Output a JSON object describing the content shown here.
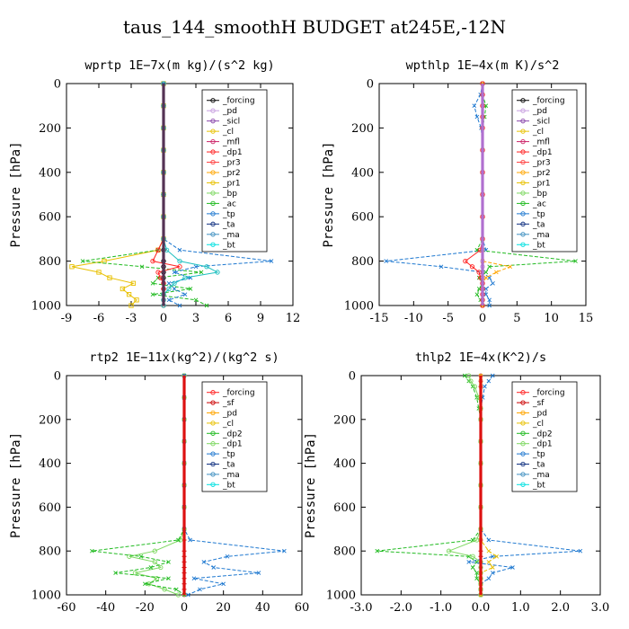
{
  "suptitle": "taus_144_smoothH  BUDGET at245E,-12N",
  "chart_data": [
    {
      "type": "line",
      "title": "wprtp   1E−7x(m kg)/(s^2 kg)",
      "ylabel": "Pressure [hPa]",
      "xlim": [
        -9,
        12
      ],
      "xticks": [
        "-9",
        "-6",
        "-3",
        "0",
        "3",
        "6",
        "9",
        "12"
      ],
      "ylim": [
        1000,
        0
      ],
      "yticks": [
        "0",
        "200",
        "400",
        "600",
        "800",
        "1000"
      ],
      "pressure": [
        0,
        100,
        200,
        300,
        400,
        500,
        600,
        700,
        750,
        800,
        825,
        850,
        875,
        900,
        925,
        950,
        975,
        1000
      ],
      "legend": [
        "_forcing",
        "_pd",
        "_sicl",
        "_cl",
        "_mfl",
        "_dp1",
        "_pr3",
        "_pr2",
        "_pr1",
        "_bp",
        "_ac",
        "_tp",
        "_ta",
        "_ma",
        "_bt"
      ],
      "series": [
        {
          "name": "_forcing",
          "color": "#000000",
          "marker": "o",
          "values": [
            0,
            0,
            0,
            0,
            0,
            0,
            0,
            0,
            0,
            0,
            0,
            0,
            0,
            0,
            0,
            0,
            0,
            0
          ]
        },
        {
          "name": "_pr1",
          "color": "#e8c000",
          "marker": "s",
          "values": [
            0,
            0,
            0,
            0,
            0,
            0,
            0,
            0,
            -0.5,
            -5.5,
            -8.5,
            -6,
            -5,
            -2.8,
            -3.8,
            -3.2,
            -2.5,
            -3
          ]
        },
        {
          "name": "_ac",
          "color": "#22bb22",
          "marker": "x",
          "values": [
            0,
            0,
            0,
            0,
            0,
            0,
            0,
            0,
            -0.5,
            -7.5,
            -2,
            3.5,
            -0.5,
            -1,
            2.5,
            -1,
            3,
            4
          ]
        },
        {
          "name": "_tp",
          "color": "#1e78d0",
          "marker": "x",
          "values": [
            0,
            0,
            0,
            0,
            0,
            0,
            0,
            0,
            1.5,
            10,
            3,
            1,
            2.5,
            0.5,
            1,
            2,
            0.5,
            1.5
          ]
        },
        {
          "name": "_dp1",
          "color": "#ff2020",
          "marker": "o",
          "values": [
            0,
            0,
            0,
            0,
            0,
            0,
            0,
            0,
            -0.5,
            -1,
            1.5,
            -0.5,
            -0.3,
            0,
            0,
            0,
            0,
            0
          ]
        },
        {
          "name": "_bp",
          "color": "#20c0c0",
          "marker": "o",
          "values": [
            0,
            0,
            0,
            0,
            0,
            0,
            0,
            0,
            0.3,
            1.5,
            4,
            5,
            2,
            1,
            0.5,
            0,
            0,
            0
          ]
        }
      ]
    },
    {
      "type": "line",
      "title": "wpthlp   1E−4x(m K)/s^2",
      "ylabel": "Pressure [hPa]",
      "xlim": [
        -15,
        15
      ],
      "xticks": [
        "-15",
        "-10",
        "-5",
        "0",
        "5",
        "10",
        "15"
      ],
      "ylim": [
        1000,
        0
      ],
      "yticks": [
        "0",
        "200",
        "400",
        "600",
        "800",
        "1000"
      ],
      "pressure": [
        0,
        50,
        100,
        150,
        200,
        300,
        400,
        500,
        600,
        700,
        750,
        800,
        825,
        850,
        875,
        900,
        925,
        950,
        975,
        1000
      ],
      "legend": [
        "_forcing",
        "_pd",
        "_sicl",
        "_cl",
        "_mfl",
        "_dp1",
        "_pr3",
        "_pr2",
        "_pr1",
        "_bp",
        "_ac",
        "_tp",
        "_ta",
        "_ma",
        "_bt"
      ],
      "series": [
        {
          "name": "_forcing",
          "color": "#c8a0e0",
          "marker": "o",
          "values": [
            0,
            0,
            0,
            0,
            0,
            0,
            0,
            0,
            0,
            0,
            0,
            0,
            0,
            0,
            0,
            0,
            0,
            0,
            0,
            0
          ]
        },
        {
          "name": "_tp",
          "color": "#1e78d0",
          "marker": "x",
          "values": [
            0,
            -0.3,
            -1.2,
            -0.8,
            -0.2,
            0,
            0,
            0,
            0,
            0,
            0.5,
            -14,
            -6,
            0,
            1,
            1.5,
            0.5,
            0.5,
            1,
            1
          ]
        },
        {
          "name": "_ac",
          "color": "#22bb22",
          "marker": "x",
          "values": [
            0,
            0,
            0.5,
            0.3,
            0,
            0,
            0,
            0,
            0,
            0,
            -0.8,
            13.5,
            1,
            0.5,
            -0.5,
            0,
            -0.5,
            -0.8,
            -0.3,
            0
          ]
        },
        {
          "name": "_pr2",
          "color": "#ffa500",
          "marker": "x",
          "values": [
            0,
            0,
            0,
            0,
            0,
            0,
            0,
            0,
            0,
            0,
            0,
            0,
            4,
            2,
            0.5,
            0,
            0,
            0,
            0,
            0
          ]
        },
        {
          "name": "_dp1",
          "color": "#ff2020",
          "marker": "o",
          "values": [
            0,
            0,
            0,
            0,
            0,
            0,
            0,
            0,
            0,
            0,
            -0.3,
            -2.5,
            -1.5,
            -0.5,
            -0.3,
            0,
            0,
            0,
            0,
            0
          ]
        }
      ]
    },
    {
      "type": "line",
      "title": "rtp2   1E−11x(kg^2)/(kg^2 s)",
      "ylabel": "Pressure [hPa]",
      "xlim": [
        -60,
        60
      ],
      "xticks": [
        "-60",
        "-40",
        "-20",
        "0",
        "20",
        "40",
        "60"
      ],
      "ylim": [
        1000,
        0
      ],
      "yticks": [
        "0",
        "200",
        "400",
        "600",
        "800",
        "1000"
      ],
      "pressure": [
        0,
        100,
        200,
        300,
        400,
        500,
        600,
        700,
        750,
        800,
        825,
        850,
        875,
        900,
        925,
        950,
        975,
        1000
      ],
      "legend": [
        "_forcing",
        "_sf",
        "_pd",
        "_cl",
        "_dp2",
        "_dp1",
        "_tp",
        "_ta",
        "_ma",
        "_bt"
      ],
      "series": [
        {
          "name": "_sf",
          "color": "#cc0000",
          "marker": "+",
          "values": [
            0,
            0,
            0,
            0,
            0,
            0,
            0,
            0,
            0,
            0,
            0,
            0,
            0,
            0,
            0,
            0,
            0,
            0
          ]
        },
        {
          "name": "_dp1",
          "color": "#7dd860",
          "marker": "o",
          "values": [
            0,
            0,
            0,
            0,
            0,
            0,
            0,
            0,
            -2,
            -15,
            -28,
            -15,
            -12,
            -25,
            -14,
            -18,
            -10,
            -3
          ]
        },
        {
          "name": "_dp2",
          "color": "#22bb22",
          "marker": "x",
          "values": [
            0,
            0,
            0,
            0,
            0,
            0,
            0,
            0,
            -3,
            -47,
            -22,
            -8,
            -17,
            -35,
            -8,
            -20,
            -4,
            0
          ]
        },
        {
          "name": "_tp",
          "color": "#1e78d0",
          "marker": "x",
          "values": [
            0,
            0,
            0,
            0,
            0,
            0,
            0,
            0,
            3,
            51,
            22,
            10,
            15,
            38,
            5,
            20,
            8,
            2
          ]
        }
      ]
    },
    {
      "type": "line",
      "title": "thlp2   1E−4x(K^2)/s",
      "ylabel": "Pressure [hPa]",
      "xlim": [
        -3,
        3
      ],
      "xticks": [
        "-3.0",
        "-2.0",
        "-1.0",
        "0.0",
        "1.0",
        "2.0",
        "3.0"
      ],
      "ylim": [
        1000,
        0
      ],
      "yticks": [
        "0",
        "200",
        "400",
        "600",
        "800",
        "1000"
      ],
      "pressure": [
        0,
        25,
        50,
        100,
        150,
        200,
        300,
        400,
        500,
        600,
        700,
        750,
        800,
        825,
        850,
        875,
        900,
        925,
        950,
        975,
        1000
      ],
      "legend": [
        "_forcing",
        "_sf",
        "_pd",
        "_cl",
        "_dp2",
        "_dp1",
        "_tp",
        "_ta",
        "_ma",
        "_bt"
      ],
      "series": [
        {
          "name": "_sf",
          "color": "#cc0000",
          "marker": "+",
          "values": [
            0,
            0,
            0,
            0,
            0,
            0,
            0,
            0,
            0,
            0,
            0,
            0,
            0,
            0,
            0,
            0,
            0,
            0,
            0,
            0,
            0
          ]
        },
        {
          "name": "_dp2",
          "color": "#22bb22",
          "marker": "x",
          "values": [
            -0.4,
            -0.3,
            -0.2,
            -0.1,
            -0.05,
            0,
            0,
            0,
            0,
            0,
            0,
            -0.2,
            -2.6,
            -0.3,
            -0.1,
            -0.2,
            -0.1,
            -0.1,
            0,
            0,
            0
          ]
        },
        {
          "name": "_dp1",
          "color": "#7dd860",
          "marker": "o",
          "values": [
            -0.3,
            -0.25,
            -0.15,
            -0.05,
            0,
            0,
            0,
            0,
            0,
            0,
            0,
            -0.1,
            -0.8,
            -0.2,
            0,
            0,
            0,
            0,
            0,
            0,
            0
          ]
        },
        {
          "name": "_tp",
          "color": "#1e78d0",
          "marker": "x",
          "values": [
            0.3,
            0.2,
            0.1,
            0.05,
            0,
            0,
            0,
            0,
            0,
            0,
            0,
            0.2,
            2.5,
            0.3,
            -0.3,
            0.8,
            0.3,
            0.2,
            0,
            0,
            0
          ]
        },
        {
          "name": "_pd",
          "color": "#e8c000",
          "marker": "x",
          "values": [
            0,
            0,
            0,
            0,
            0,
            0,
            0,
            0,
            0,
            0,
            0,
            0,
            0.2,
            0.4,
            0.2,
            0.3,
            0,
            0,
            0,
            0,
            0
          ]
        }
      ]
    }
  ]
}
